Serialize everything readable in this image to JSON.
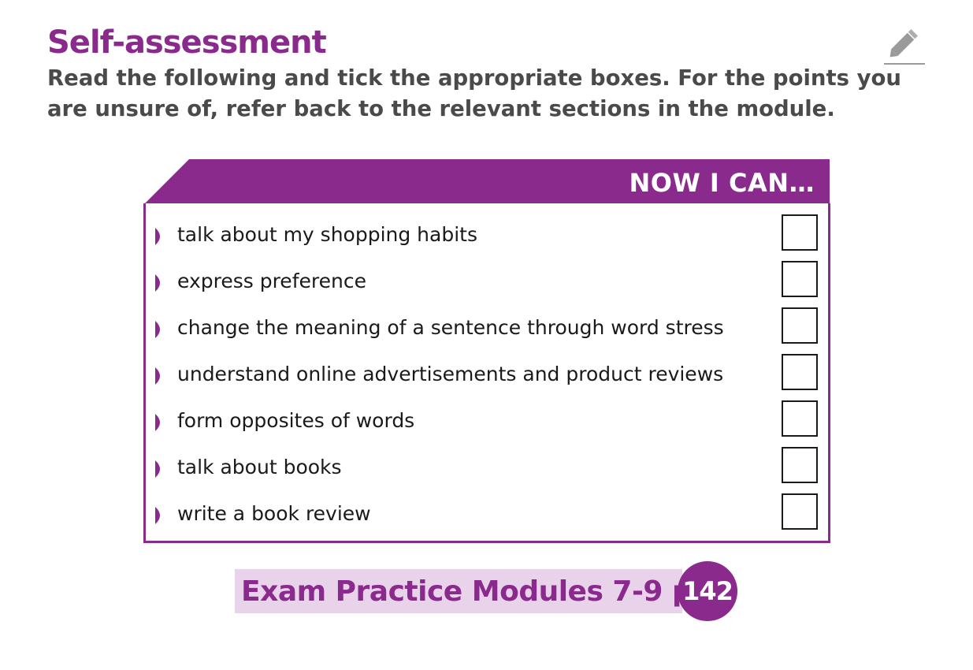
{
  "header": {
    "title": "Self-assessment",
    "instructions": "Read the following and tick the appropriate boxes. For the points you are unsure of, refer back to the relevant sections in the module."
  },
  "checklist": {
    "heading": "NOW I CAN…",
    "items": [
      "talk about my shopping habits",
      "express preference",
      "change the meaning of a sentence through word stress",
      "understand online advertisements and product reviews",
      "form opposites of words",
      "talk about books",
      "write a book review"
    ]
  },
  "footer": {
    "exam_text": "Exam Practice Modules 7-9 p.",
    "page_number": "142"
  },
  "icons": {
    "pencil": "pencil-icon",
    "bullet": "bullet-icon"
  },
  "colors": {
    "accent": "#8a2a8c",
    "accent_light": "#e8d3ea",
    "instruction_text": "#4a4a4a",
    "body_text": "#1a1a1a"
  }
}
